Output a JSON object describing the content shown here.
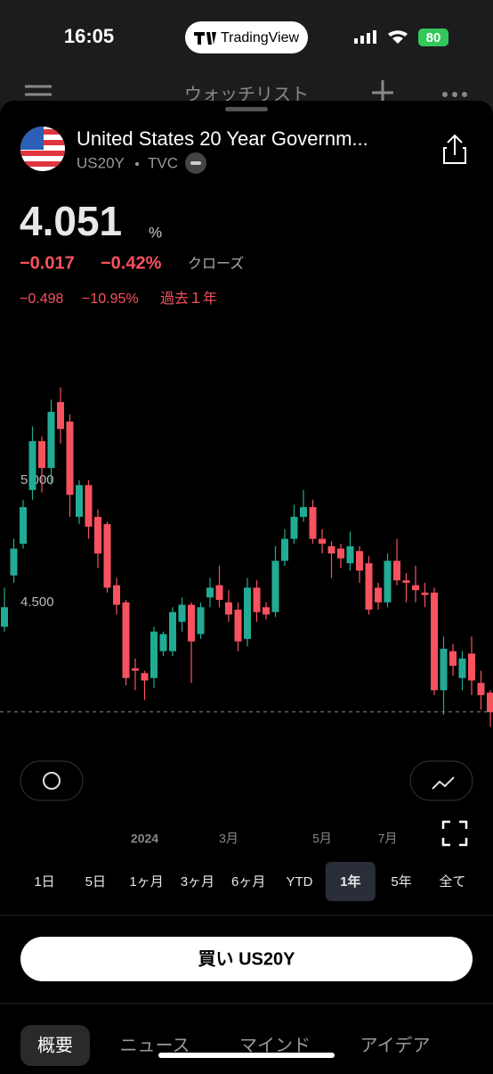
{
  "status": {
    "time": "16:05",
    "app": "TradingView",
    "battery": "80"
  },
  "nav": {
    "title": "ウォッチリスト"
  },
  "symbol": {
    "name": "United States 20 Year Governm...",
    "ticker": "US20Y",
    "exchange": "TVC"
  },
  "quote": {
    "price": "4.051",
    "unit": "%",
    "change": "−0.017",
    "change_pct": "−0.42%",
    "session": "クローズ",
    "year_change": "−0.498",
    "year_change_pct": "−10.95%",
    "year_label": "過去１年"
  },
  "chart_data": {
    "type": "candlestick",
    "categories": [
      null,
      null,
      null,
      null,
      null,
      null,
      null,
      null,
      null,
      null,
      null,
      null,
      null,
      null,
      null,
      "2024",
      null,
      null,
      null,
      null,
      null,
      null,
      null,
      null,
      "3月",
      null,
      null,
      null,
      null,
      null,
      null,
      null,
      null,
      null,
      "5月",
      null,
      null,
      null,
      null,
      null,
      null,
      "7月",
      null,
      null,
      null,
      null,
      null,
      null,
      null,
      null,
      null,
      null,
      null
    ],
    "open": [
      4.4,
      4.61,
      4.74,
      4.96,
      5.16,
      5.05,
      5.32,
      5.24,
      4.85,
      4.98,
      4.85,
      4.82,
      4.57,
      4.5,
      4.23,
      4.21,
      4.19,
      4.3,
      4.3,
      4.42,
      4.49,
      4.37,
      4.52,
      4.57,
      4.5,
      4.47,
      4.35,
      4.56,
      4.48,
      4.46,
      4.67,
      4.76,
      4.85,
      4.89,
      4.76,
      4.73,
      4.72,
      4.66,
      4.71,
      4.66,
      4.56,
      4.5,
      4.67,
      4.59,
      4.57,
      4.54,
      4.54,
      4.14,
      4.3,
      4.19,
      4.29,
      4.17,
      4.13
    ],
    "high": [
      4.56,
      4.76,
      4.92,
      5.22,
      5.18,
      5.33,
      5.38,
      5.27,
      5.0,
      5.0,
      4.88,
      4.83,
      4.6,
      4.51,
      4.27,
      4.22,
      4.4,
      4.38,
      4.48,
      4.52,
      4.5,
      4.5,
      4.6,
      4.65,
      4.55,
      4.5,
      4.6,
      4.59,
      4.5,
      4.73,
      4.8,
      4.9,
      4.96,
      4.92,
      4.8,
      4.75,
      4.74,
      4.79,
      4.73,
      4.69,
      4.58,
      4.7,
      4.76,
      4.62,
      4.65,
      4.58,
      4.56,
      4.36,
      4.33,
      4.3,
      4.36,
      4.22,
      4.14
    ],
    "low": [
      4.38,
      4.58,
      4.72,
      4.92,
      4.95,
      4.98,
      5.15,
      4.85,
      4.82,
      4.76,
      4.64,
      4.54,
      4.45,
      4.16,
      4.14,
      4.1,
      4.15,
      4.28,
      4.28,
      4.38,
      4.17,
      4.35,
      4.48,
      4.48,
      4.42,
      4.3,
      4.32,
      4.42,
      4.43,
      4.44,
      4.65,
      4.74,
      4.83,
      4.74,
      4.7,
      4.6,
      4.64,
      4.63,
      4.58,
      4.45,
      4.47,
      4.48,
      4.57,
      4.5,
      4.5,
      4.48,
      4.12,
      4.04,
      4.2,
      4.14,
      4.12,
      4.06,
      3.99
    ],
    "close": [
      4.48,
      4.72,
      4.89,
      5.16,
      5.05,
      5.28,
      5.21,
      4.94,
      4.98,
      4.81,
      4.7,
      4.56,
      4.49,
      4.19,
      4.22,
      4.18,
      4.38,
      4.37,
      4.46,
      4.49,
      4.34,
      4.48,
      4.56,
      4.51,
      4.45,
      4.34,
      4.56,
      4.46,
      4.45,
      4.67,
      4.76,
      4.85,
      4.89,
      4.76,
      4.74,
      4.7,
      4.68,
      4.73,
      4.63,
      4.47,
      4.5,
      4.67,
      4.59,
      4.58,
      4.55,
      4.53,
      4.14,
      4.31,
      4.24,
      4.27,
      4.18,
      4.12,
      4.05
    ],
    "up_color": "#22ab94",
    "down_color": "#f7525f",
    "last": 4.051,
    "ylim": [
      3.97,
      5.43
    ],
    "yticks": [
      {
        "value": 4.5,
        "label": "4.500"
      },
      {
        "value": 5,
        "label": "5.000"
      }
    ],
    "grid": false
  },
  "ranges": [
    "1日",
    "5日",
    "1ヶ月",
    "3ヶ月",
    "6ヶ月",
    "YTD",
    "1年",
    "5年",
    "全て"
  ],
  "buy_button": "買い US20Y",
  "tabs": [
    "概要",
    "ニュース",
    "マインド",
    "アイデア"
  ]
}
